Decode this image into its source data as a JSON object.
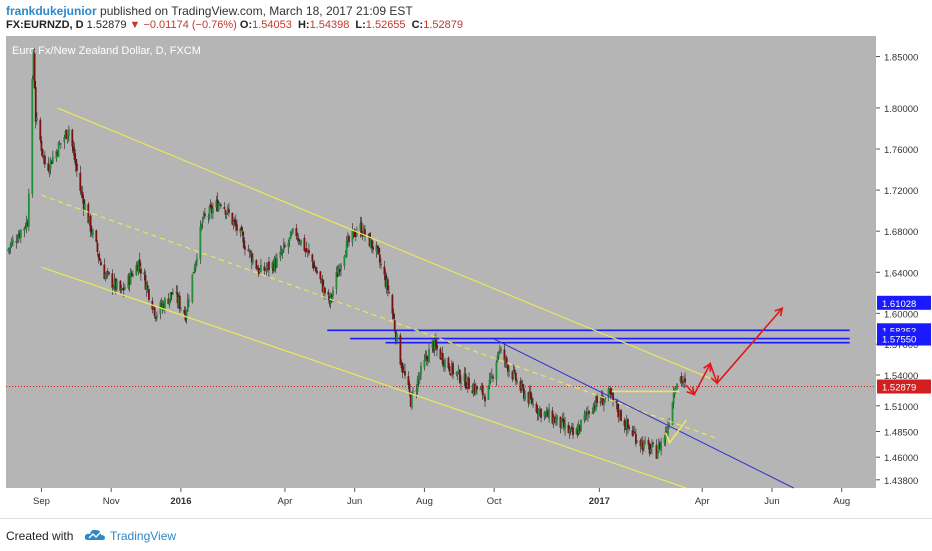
{
  "header": {
    "author": "frankdukejunior",
    "published_text": "published on TradingView.com, March 18, 2017 21:09 EST",
    "symbol": "FX:EURNZD, D",
    "last": "1.52879",
    "change_arrow": "▼",
    "change": "−0.01174 (−0.76%)",
    "o_label": "O:",
    "o": "1.54053",
    "h_label": "H:",
    "h": "1.54398",
    "l_label": "L:",
    "l": "1.52655",
    "c_label": "C:",
    "c": "1.52879"
  },
  "footer": {
    "created_with": "Created with",
    "brand": "TradingView",
    "logo_icon": "tradingview-cloud-icon"
  },
  "colors": {
    "plot_bg": "#b5b5b5",
    "axis_bg": "#ffffff",
    "up": "#1f8f3a",
    "down": "#7a1010",
    "channel": "#e8e85a",
    "support": "#1a1aff",
    "trend": "#3030d0",
    "price_line": "#d02020",
    "projection": "#e01818"
  },
  "chart_data": {
    "type": "candlestick",
    "title": "Euro Fx/New Zealand Dollar, D, FXCM",
    "y_axis": {
      "ticks": [
        "1.85000",
        "1.80000",
        "1.76000",
        "1.72000",
        "1.68000",
        "1.64000",
        "1.60000",
        "1.57000",
        "1.54000",
        "1.51000",
        "1.48500",
        "1.46000",
        "1.43800"
      ],
      "range": [
        1.43,
        1.87
      ]
    },
    "x_axis": {
      "labels": [
        "Sep",
        "Nov",
        "2016",
        "Apr",
        "Jun",
        "Aug",
        "Oct",
        "2017",
        "Apr",
        "Jun",
        "Aug"
      ],
      "bold": [
        "2016",
        "2017"
      ]
    },
    "price_badges": [
      {
        "label": "1.61028",
        "value": 1.61028,
        "style": "blue"
      },
      {
        "label": "1.58353",
        "value": 1.58353,
        "style": "blue"
      },
      {
        "label": "1.57550",
        "value": 1.5755,
        "style": "blue"
      },
      {
        "label": "1.52879",
        "value": 1.52879,
        "style": "red"
      }
    ],
    "horizontal_levels": [
      {
        "price": 1.58353,
        "from": "2016-05-08",
        "to": "2017-08-08"
      },
      {
        "price": 1.5755,
        "from": "2016-05-28",
        "to": "2017-08-08"
      },
      {
        "price": 1.5715,
        "from": "2016-06-28",
        "to": "2017-08-08"
      }
    ],
    "current_price_line": 1.52879,
    "price_path": [
      {
        "date": "2015-08-01",
        "price": 1.66
      },
      {
        "date": "2015-08-20",
        "price": 1.69
      },
      {
        "date": "2015-08-25",
        "price": 1.855
      },
      {
        "date": "2015-08-27",
        "price": 1.79
      },
      {
        "date": "2015-09-05",
        "price": 1.74
      },
      {
        "date": "2015-09-25",
        "price": 1.78
      },
      {
        "date": "2015-10-05",
        "price": 1.72
      },
      {
        "date": "2015-10-15",
        "price": 1.68
      },
      {
        "date": "2015-10-25",
        "price": 1.64
      },
      {
        "date": "2015-11-10",
        "price": 1.62
      },
      {
        "date": "2015-11-25",
        "price": 1.65
      },
      {
        "date": "2015-12-10",
        "price": 1.6
      },
      {
        "date": "2015-12-25",
        "price": 1.62
      },
      {
        "date": "2016-01-05",
        "price": 1.6
      },
      {
        "date": "2016-01-20",
        "price": 1.69
      },
      {
        "date": "2016-02-05",
        "price": 1.71
      },
      {
        "date": "2016-02-20",
        "price": 1.68
      },
      {
        "date": "2016-03-10",
        "price": 1.64
      },
      {
        "date": "2016-03-25",
        "price": 1.65
      },
      {
        "date": "2016-04-10",
        "price": 1.68
      },
      {
        "date": "2016-04-25",
        "price": 1.65
      },
      {
        "date": "2016-05-10",
        "price": 1.61
      },
      {
        "date": "2016-05-22",
        "price": 1.66
      },
      {
        "date": "2016-06-05",
        "price": 1.685
      },
      {
        "date": "2016-06-20",
        "price": 1.66
      },
      {
        "date": "2016-07-01",
        "price": 1.62
      },
      {
        "date": "2016-07-10",
        "price": 1.56
      },
      {
        "date": "2016-07-20",
        "price": 1.515
      },
      {
        "date": "2016-07-28",
        "price": 1.54
      },
      {
        "date": "2016-08-08",
        "price": 1.57
      },
      {
        "date": "2016-08-25",
        "price": 1.545
      },
      {
        "date": "2016-09-10",
        "price": 1.53
      },
      {
        "date": "2016-09-25",
        "price": 1.52
      },
      {
        "date": "2016-10-05",
        "price": 1.565
      },
      {
        "date": "2016-10-15",
        "price": 1.545
      },
      {
        "date": "2016-10-25",
        "price": 1.525
      },
      {
        "date": "2016-11-10",
        "price": 1.505
      },
      {
        "date": "2016-11-25",
        "price": 1.495
      },
      {
        "date": "2016-12-10",
        "price": 1.48
      },
      {
        "date": "2016-12-25",
        "price": 1.51
      },
      {
        "date": "2017-01-10",
        "price": 1.52
      },
      {
        "date": "2017-01-25",
        "price": 1.49
      },
      {
        "date": "2017-02-10",
        "price": 1.47
      },
      {
        "date": "2017-02-20",
        "price": 1.465
      },
      {
        "date": "2017-03-01",
        "price": 1.485
      },
      {
        "date": "2017-03-08",
        "price": 1.53
      },
      {
        "date": "2017-03-12",
        "price": 1.54
      },
      {
        "date": "2017-03-17",
        "price": 1.5288
      }
    ],
    "drawings": {
      "channel_upper": [
        {
          "date": "2015-09-15",
          "price": 1.8
        },
        {
          "date": "2017-04-12",
          "price": 1.535
        }
      ],
      "channel_mid_dashed": [
        {
          "date": "2015-09-01",
          "price": 1.715
        },
        {
          "date": "2017-04-12",
          "price": 1.479
        }
      ],
      "channel_lower": [
        {
          "date": "2015-09-01",
          "price": 1.645
        },
        {
          "date": "2017-03-18",
          "price": 1.43
        }
      ],
      "trendline_blue": [
        {
          "date": "2016-10-01",
          "price": 1.575
        },
        {
          "date": "2017-06-20",
          "price": 1.43
        }
      ],
      "yellow_hline": [
        {
          "date": "2017-01-12",
          "price": 1.524
        },
        {
          "date": "2017-03-12",
          "price": 1.524
        }
      ],
      "yellow_small_arrow": [
        {
          "date": "2017-02-28",
          "price": 1.478
        },
        {
          "date": "2017-03-18",
          "price": 1.496
        }
      ],
      "projection_path": [
        {
          "date": "2017-03-18",
          "price": 1.53
        },
        {
          "date": "2017-03-25",
          "price": 1.521
        },
        {
          "date": "2017-04-08",
          "price": 1.551
        },
        {
          "date": "2017-04-14",
          "price": 1.532
        },
        {
          "date": "2017-06-10",
          "price": 1.605
        }
      ]
    }
  }
}
